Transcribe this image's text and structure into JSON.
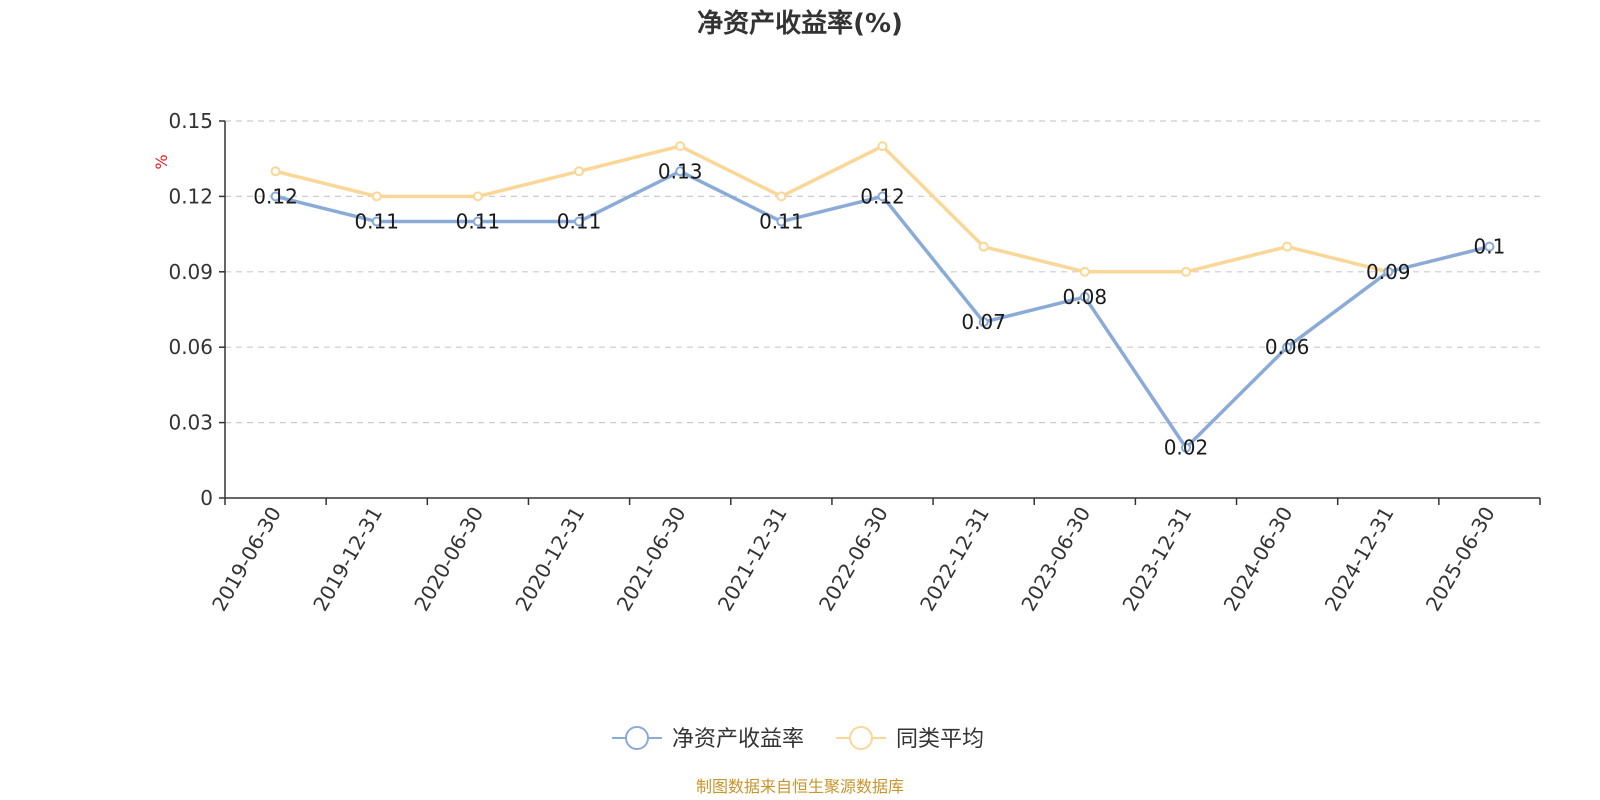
{
  "chart_data": {
    "type": "line",
    "title": "净资产收益率(%)",
    "ylabel": "%",
    "xlabel": "",
    "categories": [
      "2019-06-30",
      "2019-12-31",
      "2020-06-30",
      "2020-12-31",
      "2021-06-30",
      "2021-12-31",
      "2022-06-30",
      "2022-12-31",
      "2023-06-30",
      "2023-12-31",
      "2024-06-30",
      "2024-12-31",
      "2025-06-30"
    ],
    "yticks": [
      "0",
      "0.03",
      "0.06",
      "0.09",
      "0.12",
      "0.15"
    ],
    "ylim": [
      0,
      0.15
    ],
    "grid": true,
    "legend_position": "bottom",
    "series": [
      {
        "name": "净资产收益率",
        "color": "#8aabd8",
        "values": [
          0.12,
          0.11,
          0.11,
          0.11,
          0.13,
          0.11,
          0.12,
          0.07,
          0.08,
          0.02,
          0.06,
          0.09,
          0.1
        ],
        "labels": [
          "0.12",
          "0.11",
          "0.11",
          "0.11",
          "0.13",
          "0.11",
          "0.12",
          "0.07",
          "0.08",
          "0.02",
          "0.06",
          "0.09",
          "0.1"
        ]
      },
      {
        "name": "同类平均",
        "color": "#fad797",
        "values": [
          0.13,
          0.12,
          0.12,
          0.13,
          0.14,
          0.12,
          0.14,
          0.1,
          0.09,
          0.09,
          0.1,
          0.09,
          0.1
        ]
      }
    ]
  },
  "source": "制图数据来自恒生聚源数据库"
}
